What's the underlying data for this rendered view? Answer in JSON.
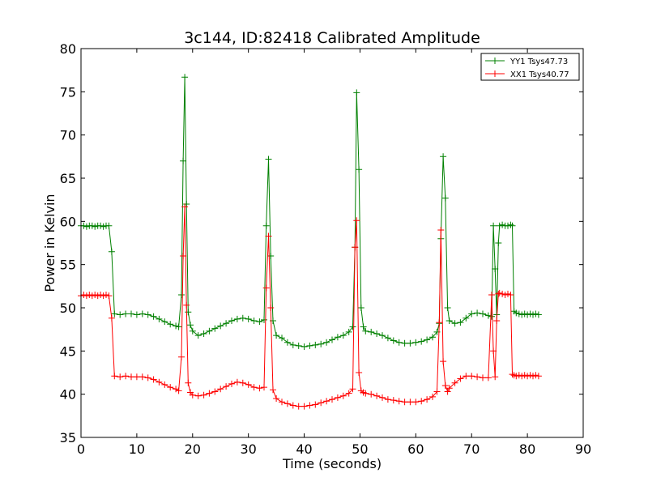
{
  "chart_data": {
    "type": "line",
    "title": "3c144, ID:82418 Calibrated Amplitude",
    "xlabel": "Time (seconds)",
    "ylabel": "Power in Kelvin",
    "xlim": [
      0,
      90
    ],
    "ylim": [
      35,
      80
    ],
    "xticks": [
      0,
      10,
      20,
      30,
      40,
      50,
      60,
      70,
      80,
      90
    ],
    "yticks": [
      35,
      40,
      45,
      50,
      55,
      60,
      65,
      70,
      75,
      80
    ],
    "grid": false,
    "legend_position": "top-right",
    "marker": "plus",
    "series": [
      {
        "name": "YY1 Tsys47.73",
        "color": "#008000",
        "x": [
          0,
          0.5,
          1,
          1.5,
          2,
          2.5,
          3,
          3.5,
          4,
          4.5,
          5,
          5.5,
          6,
          7,
          8,
          9,
          10,
          11,
          12,
          13,
          14,
          15,
          16,
          17,
          17.5,
          18,
          18.3,
          18.6,
          18.9,
          19.2,
          19.6,
          20,
          21,
          22,
          23,
          24,
          25,
          26,
          27,
          28,
          29,
          30,
          31,
          32,
          32.8,
          33.2,
          33.6,
          34,
          34.4,
          35,
          36,
          37,
          38,
          39,
          40,
          41,
          42,
          43,
          44,
          45,
          46,
          47,
          48,
          48.7,
          49.1,
          49.4,
          49.8,
          50.2,
          50.6,
          51,
          52,
          53,
          54,
          55,
          56,
          57,
          58,
          59,
          60,
          61,
          62,
          63,
          63.8,
          64.2,
          64.5,
          64.9,
          65.3,
          65.7,
          66,
          67,
          68,
          69,
          70,
          71,
          72,
          73,
          73.6,
          73.9,
          74.2,
          74.5,
          74.8,
          75,
          75.5,
          76,
          76.5,
          77,
          77.3,
          77.6,
          78,
          78.5,
          79,
          79.5,
          80,
          80.5,
          81,
          81.5,
          82
        ],
        "values": [
          59.5,
          59.5,
          59.4,
          59.5,
          59.5,
          59.4,
          59.5,
          59.5,
          59.4,
          59.5,
          59.5,
          56.5,
          49.3,
          49.2,
          49.3,
          49.3,
          49.2,
          49.3,
          49.2,
          49,
          48.7,
          48.4,
          48.1,
          47.9,
          47.8,
          51.5,
          67,
          76.7,
          62,
          49.5,
          48,
          47.3,
          46.8,
          47,
          47.3,
          47.6,
          47.9,
          48.2,
          48.5,
          48.7,
          48.8,
          48.7,
          48.5,
          48.4,
          48.6,
          59.5,
          67.2,
          56,
          48.5,
          46.8,
          46.5,
          46,
          45.7,
          45.6,
          45.5,
          45.6,
          45.7,
          45.8,
          46,
          46.3,
          46.6,
          46.8,
          47.2,
          47.8,
          57,
          74.9,
          66,
          50,
          47.8,
          47.3,
          47.2,
          47,
          46.8,
          46.5,
          46.2,
          46,
          45.9,
          45.9,
          46,
          46.1,
          46.3,
          46.6,
          47.2,
          48.2,
          58,
          67.5,
          62.7,
          50,
          48.5,
          48.2,
          48.3,
          48.8,
          49.3,
          49.4,
          49.3,
          49.1,
          49,
          59.5,
          54.5,
          49.2,
          57.5,
          59.5,
          59.6,
          59.5,
          59.5,
          59.6,
          59.5,
          49.6,
          49.4,
          49.3,
          49.2,
          49.3,
          49.2,
          49.3,
          49.2,
          49.3,
          49.2
        ]
      },
      {
        "name": "XX1 Tsys40.77",
        "color": "#ff0000",
        "x": [
          0,
          0.5,
          1,
          1.5,
          2,
          2.5,
          3,
          3.5,
          4,
          4.5,
          5,
          5.5,
          6,
          7,
          8,
          9,
          10,
          11,
          12,
          13,
          14,
          15,
          16,
          17,
          17.5,
          18,
          18.3,
          18.6,
          18.9,
          19.2,
          19.6,
          20,
          21,
          22,
          23,
          24,
          25,
          26,
          27,
          28,
          29,
          30,
          31,
          32,
          32.8,
          33.2,
          33.6,
          34,
          34.4,
          35,
          36,
          37,
          38,
          39,
          40,
          41,
          42,
          43,
          44,
          45,
          46,
          47,
          48,
          48.7,
          49.1,
          49.4,
          49.8,
          50.2,
          50.6,
          51,
          52,
          53,
          54,
          55,
          56,
          57,
          58,
          59,
          60,
          61,
          62,
          63,
          63.8,
          64.2,
          64.5,
          64.9,
          65.3,
          65.7,
          66,
          67,
          68,
          69,
          70,
          71,
          72,
          73,
          73.6,
          73.9,
          74.2,
          74.5,
          74.8,
          75,
          75.5,
          76,
          76.5,
          77,
          77.3,
          77.6,
          78,
          78.5,
          79,
          79.5,
          80,
          80.5,
          81,
          81.5,
          82
        ],
        "values": [
          51.4,
          51.5,
          51.4,
          51.5,
          51.4,
          51.5,
          51.4,
          51.5,
          51.4,
          51.5,
          51.4,
          48.8,
          42.1,
          42,
          42.1,
          42,
          42,
          42,
          41.9,
          41.7,
          41.4,
          41.1,
          40.8,
          40.6,
          40.4,
          44.3,
          56,
          61.7,
          50.3,
          41.3,
          40.2,
          39.9,
          39.8,
          39.9,
          40.1,
          40.3,
          40.6,
          40.9,
          41.2,
          41.4,
          41.3,
          41.1,
          40.8,
          40.7,
          40.8,
          52.3,
          58.3,
          50,
          40.5,
          39.5,
          39.1,
          38.9,
          38.7,
          38.6,
          38.6,
          38.7,
          38.8,
          39,
          39.2,
          39.4,
          39.6,
          39.8,
          40.1,
          40.6,
          57,
          60.1,
          42.5,
          40.4,
          40.2,
          40.1,
          40,
          39.8,
          39.6,
          39.4,
          39.3,
          39.2,
          39.1,
          39.1,
          39.1,
          39.2,
          39.4,
          39.7,
          40.3,
          48.3,
          59,
          43.8,
          41,
          40.3,
          40.7,
          41.3,
          41.8,
          42.1,
          42.1,
          42,
          41.9,
          41.9,
          51.5,
          45,
          42,
          48.5,
          51.6,
          51.7,
          51.6,
          51.5,
          51.6,
          51.5,
          42.3,
          42.2,
          42.1,
          42.2,
          42.1,
          42.2,
          42.1,
          42.2,
          42.1,
          42.2,
          42.1
        ]
      }
    ]
  }
}
